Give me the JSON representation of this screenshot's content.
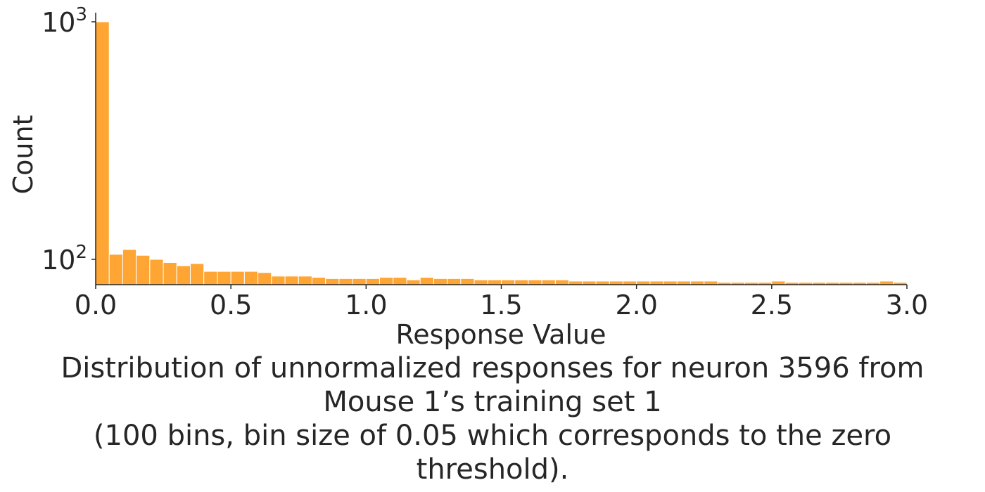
{
  "chart_data": {
    "type": "bar",
    "title": "",
    "xlabel": "Response Value",
    "ylabel": "Count",
    "xlim": [
      0,
      3.0
    ],
    "ylim": [
      80,
      1000
    ],
    "yscale": "log",
    "grid": false,
    "bar_color": "#ffa533",
    "bin_width": 0.05,
    "x_ticks": [
      "0.0",
      "0.5",
      "1.0",
      "1.5",
      "2.0",
      "2.5",
      "3.0"
    ],
    "y_ticks": [
      {
        "base": "10",
        "exp": "2"
      },
      {
        "base": "10",
        "exp": "3"
      }
    ],
    "bin_starts": [
      0.0,
      0.05,
      0.1,
      0.15,
      0.2,
      0.25,
      0.3,
      0.35,
      0.4,
      0.45,
      0.5,
      0.55,
      0.6,
      0.65,
      0.7,
      0.75,
      0.8,
      0.85,
      0.9,
      0.95,
      1.0,
      1.05,
      1.1,
      1.15,
      1.2,
      1.25,
      1.3,
      1.35,
      1.4,
      1.45,
      1.5,
      1.55,
      1.6,
      1.65,
      1.7,
      1.75,
      1.8,
      1.85,
      1.9,
      1.95,
      2.0,
      2.05,
      2.1,
      2.15,
      2.2,
      2.25,
      2.3,
      2.35,
      2.4,
      2.45,
      2.5,
      2.55,
      2.6,
      2.65,
      2.7,
      2.75,
      2.8,
      2.85,
      2.9,
      2.95
    ],
    "values": [
      1000,
      105,
      110,
      104,
      100,
      97,
      94,
      96,
      89,
      89,
      89,
      89,
      88,
      85,
      85,
      85,
      84,
      83,
      83,
      83,
      83,
      84,
      84,
      82,
      84,
      83,
      83,
      83,
      82,
      82,
      82,
      82,
      82,
      82,
      82,
      81,
      81,
      81,
      81,
      81,
      81,
      81,
      81,
      81,
      81,
      81,
      80,
      80,
      80,
      80,
      81,
      80,
      80,
      80,
      80,
      80,
      80,
      80,
      81,
      80
    ]
  },
  "caption": {
    "line1": "Distribution of unnormalized responses for neuron 3596 from",
    "line2": "Mouse 1’s training set 1",
    "line3": "(100 bins, bin size of 0.05 which corresponds to the zero",
    "line4": "threshold)."
  }
}
